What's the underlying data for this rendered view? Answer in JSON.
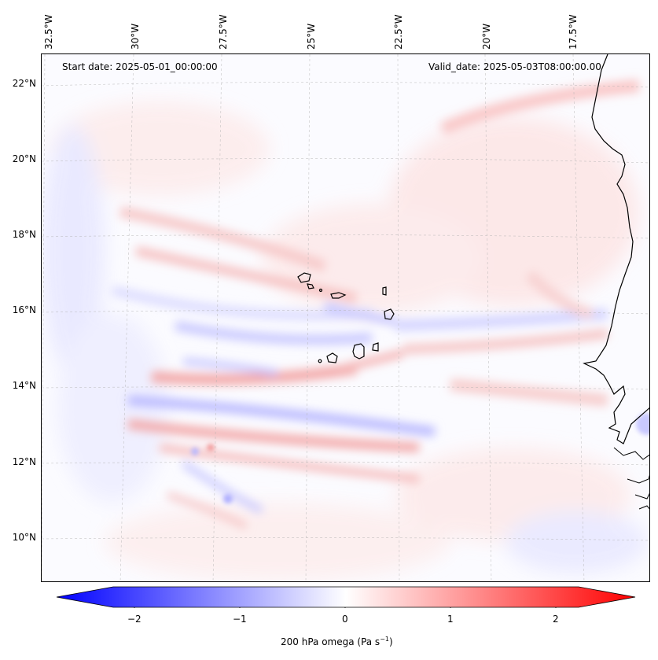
{
  "header": {
    "start_date": "Start date: 2025-05-01_00:00:00",
    "valid_date": "Valid_date: 2025-05-03T08:00:00.00"
  },
  "lon_labels": [
    "32.5°W",
    "30°W",
    "27.5°W",
    "25°W",
    "22.5°W",
    "20°W",
    "17.5°W"
  ],
  "lat_labels": [
    "22°N",
    "20°N",
    "18°N",
    "16°N",
    "14°N",
    "12°N",
    "10°N"
  ],
  "colorbar": {
    "tick_labels": [
      "−2",
      "−1",
      "0",
      "1",
      "2"
    ],
    "label": "200 hPa omega (Pa s",
    "label_sup": "−1",
    "label_end": ")",
    "colors": {
      "negative": "#0000ff",
      "zero": "#ffffff",
      "positive": "#ff0000"
    }
  },
  "map": {
    "colors": {
      "coastline": "#000000",
      "gridline": "#b0b0b0"
    }
  }
}
